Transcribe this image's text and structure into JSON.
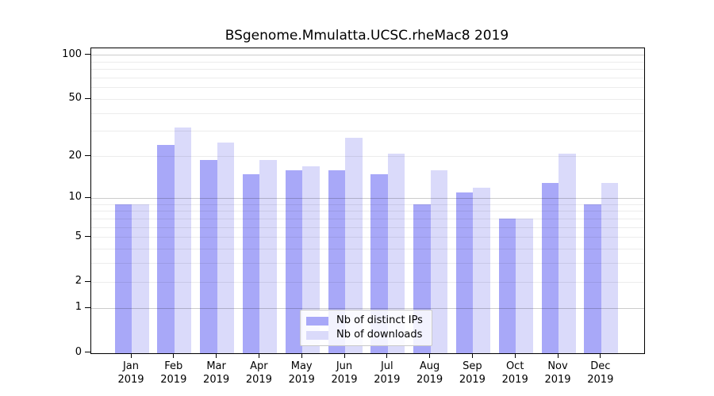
{
  "chart_data": {
    "type": "bar",
    "title": "BSgenome.Mmulatta.UCSC.rheMac8 2019",
    "categories": [
      "Jan",
      "Feb",
      "Mar",
      "Apr",
      "May",
      "Jun",
      "Jul",
      "Aug",
      "Sep",
      "Oct",
      "Nov",
      "Dec"
    ],
    "year_label": "2019",
    "series": [
      {
        "name": "Nb of distinct IPs",
        "color": "#a8a8f8",
        "values": [
          9,
          24,
          19,
          15,
          16,
          16,
          15,
          9,
          11,
          7,
          13,
          9
        ]
      },
      {
        "name": "Nb of downloads",
        "color": "#dadafa",
        "values": [
          9,
          32,
          25,
          19,
          17,
          27,
          21,
          16,
          12,
          7,
          21,
          13
        ]
      }
    ],
    "y_axis": {
      "scale": "log10(1+x)",
      "tick_labels": [
        0,
        1,
        2,
        5,
        10,
        20,
        50,
        100
      ],
      "minor_gridlines": [
        2,
        3,
        4,
        5,
        6,
        7,
        8,
        9,
        20,
        30,
        40,
        50,
        60,
        70,
        80,
        90
      ],
      "major_gridlines": [
        1,
        10,
        100
      ],
      "ylim": [
        0,
        110
      ]
    },
    "legend": {
      "position": "inside-bottom-center",
      "entries": [
        "Nb of distinct IPs",
        "Nb of downloads"
      ]
    },
    "grid": "on",
    "xlabel": "",
    "ylabel": ""
  }
}
